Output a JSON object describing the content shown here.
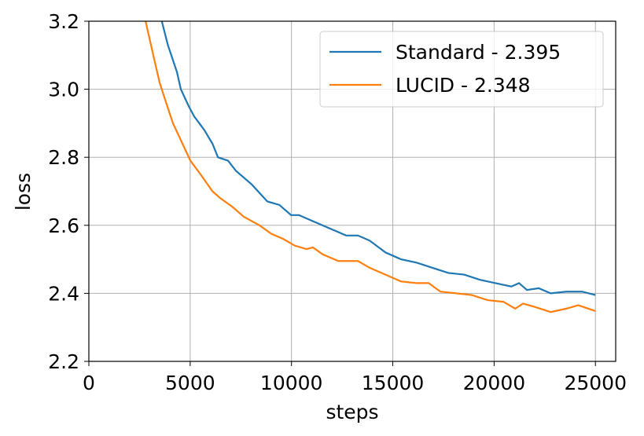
{
  "chart_data": {
    "type": "line",
    "xlabel": "steps",
    "ylabel": "loss",
    "xlim": [
      0,
      26000
    ],
    "ylim": [
      2.2,
      3.2
    ],
    "xticks": [
      0,
      5000,
      10000,
      15000,
      20000,
      25000
    ],
    "yticks": [
      {
        "value": 2.2,
        "label": "2.2"
      },
      {
        "value": 2.4,
        "label": "2.4"
      },
      {
        "value": 2.6,
        "label": "2.6"
      },
      {
        "value": 2.8,
        "label": "2.8"
      },
      {
        "value": 3.0,
        "label": "3.0"
      },
      {
        "value": 3.2,
        "label": "3.2"
      }
    ],
    "grid": true,
    "legend": "upper right",
    "series": [
      {
        "name": "Standard - 2.395",
        "color": "#1f77b4",
        "x": [
          3600,
          3900,
          4350,
          4540,
          4930,
          5200,
          5700,
          6100,
          6370,
          6870,
          7260,
          8040,
          8810,
          9400,
          9980,
          10370,
          11140,
          11920,
          12700,
          13280,
          13860,
          14640,
          15410,
          16190,
          16960,
          17740,
          18520,
          19290,
          20070,
          20850,
          21230,
          21620,
          22200,
          22790,
          23560,
          24340,
          25000
        ],
        "values": [
          3.2,
          3.13,
          3.05,
          3.0,
          2.95,
          2.92,
          2.88,
          2.84,
          2.8,
          2.79,
          2.76,
          2.72,
          2.67,
          2.66,
          2.63,
          2.63,
          2.61,
          2.59,
          2.57,
          2.57,
          2.555,
          2.52,
          2.5,
          2.49,
          2.475,
          2.46,
          2.455,
          2.44,
          2.43,
          2.42,
          2.43,
          2.41,
          2.415,
          2.4,
          2.405,
          2.405,
          2.395
        ]
      },
      {
        "name": "LUCID - 2.348",
        "color": "#ff7f0e",
        "x": [
          2800,
          3180,
          3490,
          3760,
          4150,
          4620,
          5010,
          5510,
          6100,
          6480,
          7070,
          7650,
          8420,
          9010,
          9590,
          10170,
          10750,
          11060,
          11530,
          12310,
          13280,
          13860,
          14640,
          15410,
          16190,
          16770,
          17350,
          18130,
          18900,
          19680,
          20460,
          21040,
          21430,
          22010,
          22790,
          23560,
          24150,
          25000
        ],
        "values": [
          3.2,
          3.1,
          3.02,
          2.97,
          2.9,
          2.84,
          2.79,
          2.75,
          2.7,
          2.68,
          2.655,
          2.625,
          2.6,
          2.575,
          2.56,
          2.54,
          2.53,
          2.535,
          2.515,
          2.495,
          2.495,
          2.475,
          2.455,
          2.435,
          2.43,
          2.43,
          2.405,
          2.4,
          2.395,
          2.38,
          2.375,
          2.355,
          2.37,
          2.36,
          2.345,
          2.355,
          2.365,
          2.348
        ]
      }
    ]
  }
}
